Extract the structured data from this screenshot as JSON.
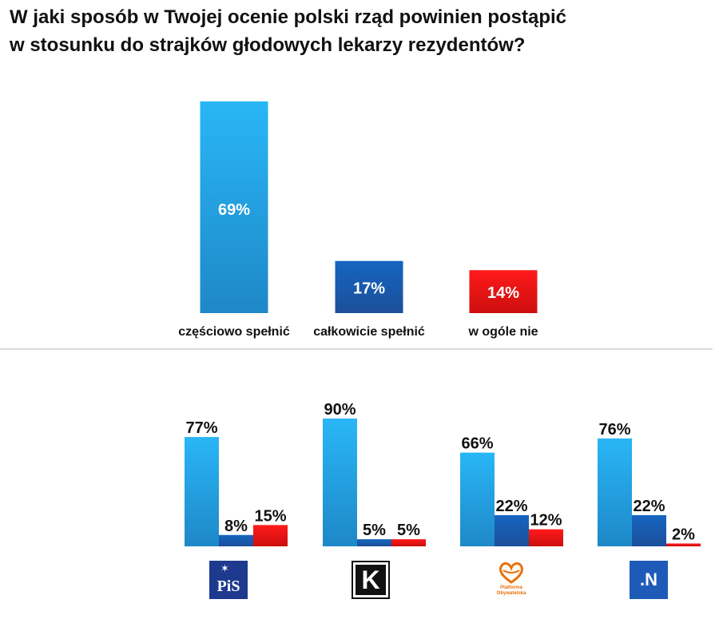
{
  "title": {
    "line1": "W jaki sposób w Twojej ocenie polski rząd powinien postąpić",
    "line2": "w stosunku do strajków głodowych lekarzy rezydentów?"
  },
  "colors": {
    "czesciowo": "#29b6f6",
    "czesciowo_dark": "#1e88c8",
    "calkowicie": "#1565c0",
    "calkowicie_dark": "#1c4f9a",
    "nie": "#e41111"
  },
  "chart_data": [
    {
      "type": "bar",
      "title": "W jaki sposób w Twojej ocenie polski rząd powinien postąpić w stosunku do strajków głodowych lekarzy rezydentów?",
      "categories": [
        "częściowo spełnić",
        "całkowicie spełnić",
        "w ogóle nie"
      ],
      "values": [
        69,
        17,
        14
      ],
      "labels": [
        "69%",
        "17%",
        "14%"
      ],
      "ylim": [
        0,
        100
      ],
      "xlabel": "",
      "ylabel": "",
      "grid": false
    },
    {
      "type": "bar",
      "categories": [
        "PiS",
        "Kukiz'15",
        "Platforma Obywatelska",
        "Nowoczesna"
      ],
      "category_labels": [
        "PiS",
        "K",
        "Platforma Obywatelska",
        ".N"
      ],
      "series": [
        {
          "name": "częściowo spełnić",
          "values": [
            77,
            90,
            66,
            76
          ],
          "labels": [
            "77%",
            "90%",
            "66%",
            "76%"
          ]
        },
        {
          "name": "całkowicie spełnić",
          "values": [
            8,
            5,
            22,
            22
          ],
          "labels": [
            "8%",
            "5%",
            "22%",
            "22%"
          ]
        },
        {
          "name": "w ogóle nie",
          "values": [
            15,
            5,
            12,
            2
          ],
          "labels": [
            "15%",
            "5%",
            "12%",
            "2%"
          ]
        }
      ],
      "ylim": [
        0,
        100
      ],
      "grid": false
    }
  ]
}
